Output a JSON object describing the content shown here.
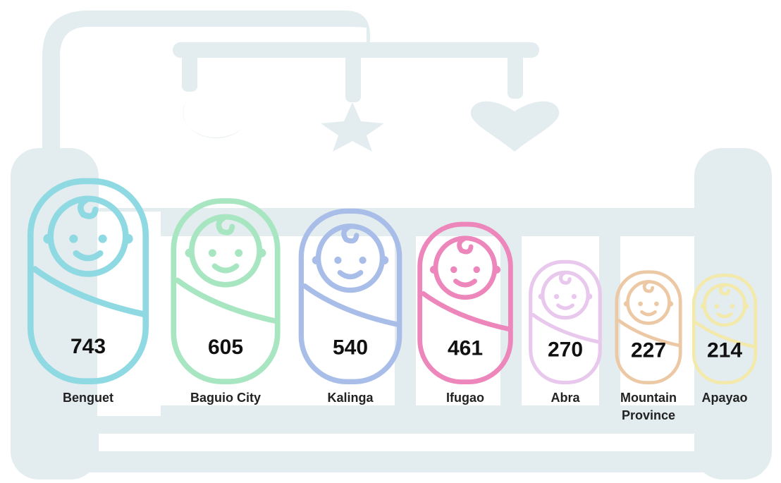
{
  "chart_data": {
    "type": "pictogram",
    "categories": [
      "Benguet",
      "Baguio City",
      "Kalinga",
      "Ifugao",
      "Abra",
      "Mountain Province",
      "Apayao"
    ],
    "values": [
      743,
      605,
      540,
      461,
      270,
      227,
      214
    ],
    "colors": [
      "#8fd9e3",
      "#a8e6c2",
      "#a9bde9",
      "#ec86bb",
      "#e9c8ee",
      "#ecc9a4",
      "#f3e9aa"
    ]
  }
}
